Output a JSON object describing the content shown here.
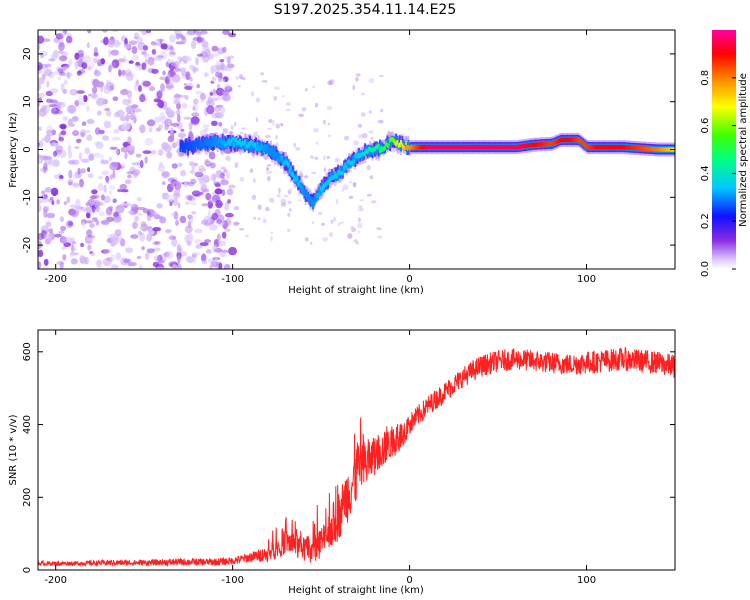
{
  "title": "S197.2025.354.11.14.E25",
  "chart_data": [
    {
      "type": "heatmap",
      "id": "spectrogram",
      "xlabel": "Height of straight line (km)",
      "ylabel": "Frequency (Hz)",
      "xlim": [
        -210,
        150
      ],
      "ylim": [
        -25,
        25
      ],
      "xticks": [
        -200,
        -100,
        0,
        100
      ],
      "yticks": [
        -20,
        -10,
        0,
        10,
        20
      ],
      "colorbar": {
        "label": "Normalized spectral amplitude",
        "range": [
          0.0,
          1.0
        ],
        "ticks": [
          0.0,
          0.2,
          0.4,
          0.6,
          0.8
        ],
        "tick_labels": [
          "0.0",
          "0.2",
          "0.4",
          "0.6",
          "0.8"
        ],
        "colormap": "rainbow (white-violet-blue-cyan-green-yellow-red-magenta)"
      },
      "ridge": {
        "description": "dominant frequency track vs height",
        "x": [
          -130,
          -110,
          -100,
          -90,
          -80,
          -75,
          -70,
          -65,
          -60,
          -55,
          -50,
          -45,
          -40,
          -35,
          -30,
          -25,
          -20,
          -15,
          -10,
          -5,
          0,
          10,
          20,
          40,
          60,
          70,
          80,
          85,
          90,
          95,
          100,
          105,
          110,
          120,
          140,
          150
        ],
        "freq": [
          0.5,
          1.5,
          1.5,
          1.0,
          0.0,
          -1.5,
          -3.0,
          -6.0,
          -9.0,
          -11.0,
          -8.0,
          -6.0,
          -5.0,
          -3.0,
          -1.5,
          -0.5,
          0.0,
          0.5,
          2.0,
          1.0,
          0.5,
          0.5,
          0.5,
          0.5,
          0.5,
          1.0,
          1.2,
          2.0,
          2.0,
          2.0,
          0.5,
          0.5,
          0.5,
          0.5,
          0.0,
          0.0
        ],
        "amplitude": [
          0.25,
          0.3,
          0.35,
          0.35,
          0.3,
          0.3,
          0.35,
          0.35,
          0.3,
          0.3,
          0.35,
          0.35,
          0.35,
          0.35,
          0.35,
          0.4,
          0.45,
          0.5,
          0.6,
          0.7,
          0.8,
          0.95,
          0.95,
          0.95,
          0.95,
          0.9,
          0.85,
          0.9,
          0.9,
          0.85,
          0.85,
          0.9,
          0.9,
          0.9,
          0.8,
          0.7
        ]
      }
    },
    {
      "type": "line",
      "id": "snr",
      "xlabel": "Height of straight line (km)",
      "ylabel": "SNR (10 * v/v)",
      "xlim": [
        -210,
        150
      ],
      "ylim": [
        0,
        660
      ],
      "xticks": [
        -200,
        -100,
        0,
        100
      ],
      "yticks": [
        0,
        200,
        400,
        600
      ],
      "color": "#ff2020",
      "series": [
        {
          "name": "SNR",
          "x": [
            -210,
            -190,
            -170,
            -150,
            -130,
            -110,
            -100,
            -90,
            -80,
            -75,
            -70,
            -65,
            -60,
            -55,
            -50,
            -45,
            -40,
            -35,
            -30,
            -25,
            -20,
            -15,
            -10,
            -5,
            0,
            10,
            20,
            30,
            40,
            50,
            60,
            70,
            80,
            90,
            100,
            110,
            120,
            130,
            140,
            150
          ],
          "y": [
            18,
            18,
            20,
            20,
            22,
            22,
            25,
            35,
            45,
            60,
            80,
            70,
            55,
            60,
            75,
            110,
            150,
            210,
            260,
            290,
            310,
            330,
            350,
            370,
            400,
            450,
            490,
            530,
            560,
            575,
            580,
            575,
            570,
            565,
            570,
            575,
            580,
            575,
            570,
            560
          ],
          "noise": [
            6,
            6,
            8,
            8,
            10,
            10,
            10,
            14,
            22,
            30,
            35,
            35,
            35,
            40,
            45,
            60,
            70,
            80,
            80,
            70,
            55,
            50,
            45,
            40,
            30,
            28,
            28,
            28,
            30,
            30,
            30,
            30,
            30,
            30,
            32,
            32,
            32,
            32,
            32,
            32
          ]
        }
      ]
    }
  ]
}
